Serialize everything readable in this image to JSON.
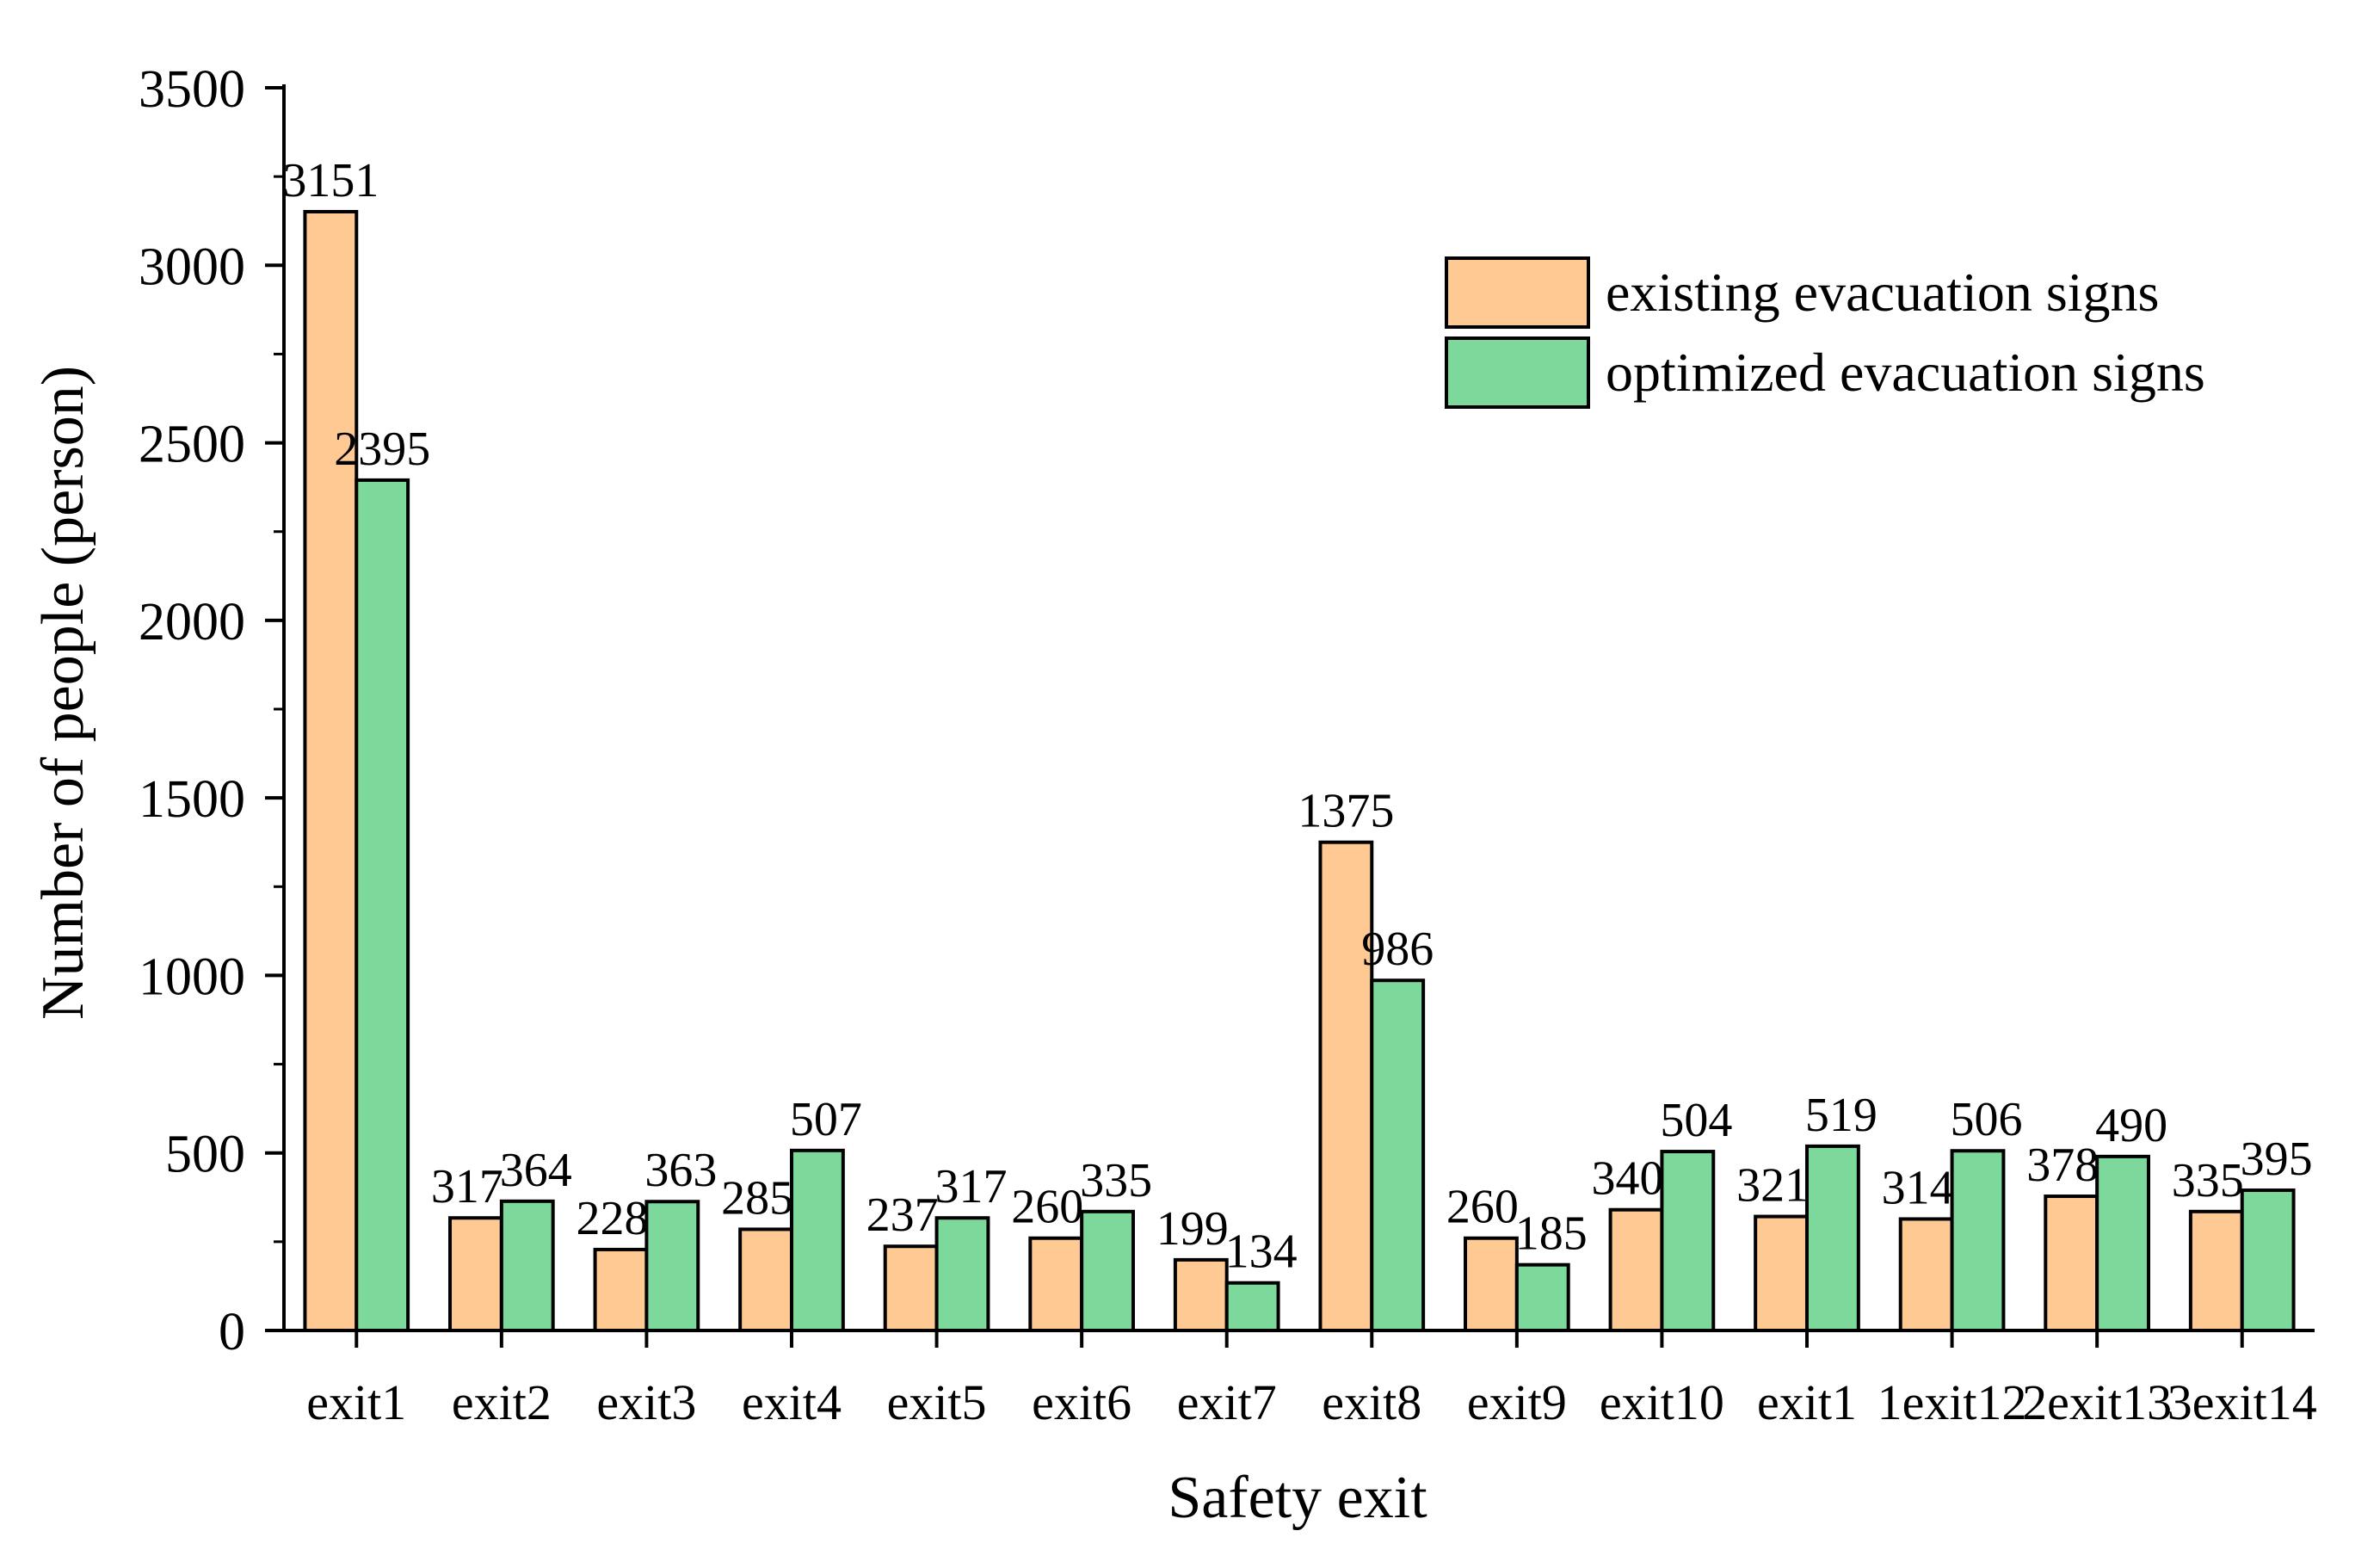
{
  "chart_data": {
    "type": "bar",
    "title": "",
    "xlabel": "Safety exit",
    "ylabel": "Number of people (person)",
    "ylim": [
      0,
      3500
    ],
    "yticks": [
      0,
      500,
      1000,
      1500,
      2000,
      2500,
      3000,
      3500
    ],
    "grid": false,
    "legend_position": "top-right",
    "categories": [
      "exit1",
      "exit2",
      "exit3",
      "exit4",
      "exit5",
      "exit6",
      "exit7",
      "exit8",
      "exit9",
      "exit10",
      "exit1",
      "1exit12",
      "2exit13",
      "3exit14"
    ],
    "series": [
      {
        "name": "existing evacuation signs",
        "color": "#FFC994",
        "values": [
          3151,
          317,
          228,
          285,
          237,
          260,
          199,
          1375,
          260,
          340,
          321,
          314,
          378,
          335
        ]
      },
      {
        "name": "optimized evacuation signs",
        "color": "#7DD89B",
        "values": [
          2395,
          364,
          363,
          507,
          317,
          335,
          134,
          986,
          185,
          504,
          519,
          506,
          490,
          395
        ]
      }
    ]
  }
}
